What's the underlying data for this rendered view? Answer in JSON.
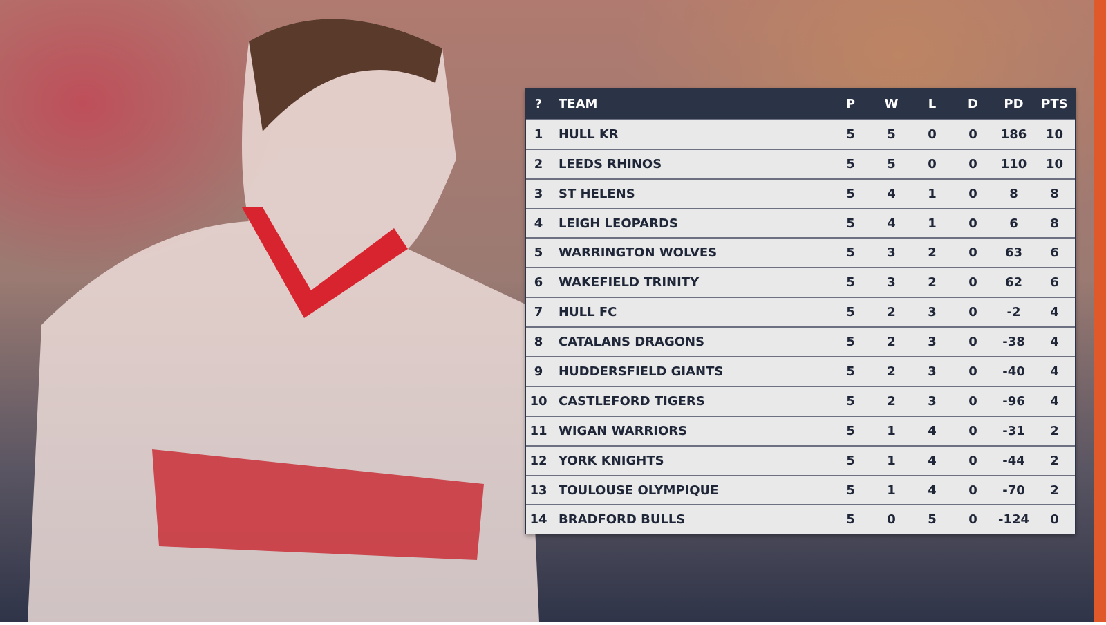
{
  "table": {
    "header": [
      "?",
      "TEAM",
      "P",
      "W",
      "L",
      "D",
      "PD",
      "PTS"
    ],
    "rows": [
      [
        1,
        "HULL KR",
        5,
        5,
        0,
        0,
        186,
        10
      ],
      [
        2,
        "LEEDS RHINOS",
        5,
        5,
        0,
        0,
        110,
        10
      ],
      [
        3,
        "ST HELENS",
        5,
        4,
        1,
        0,
        8,
        8
      ],
      [
        4,
        "LEIGH LEOPARDS",
        5,
        4,
        1,
        0,
        6,
        8
      ],
      [
        5,
        "WARRINGTON WOLVES",
        5,
        3,
        2,
        0,
        63,
        6
      ],
      [
        6,
        "WAKEFIELD TRINITY",
        5,
        3,
        2,
        0,
        62,
        6
      ],
      [
        7,
        "HULL FC",
        5,
        2,
        3,
        0,
        -2,
        4
      ],
      [
        8,
        "CATALANS DRAGONS",
        5,
        2,
        3,
        0,
        -38,
        4
      ],
      [
        9,
        "HUDDERSFIELD GIANTS",
        5,
        2,
        3,
        0,
        -40,
        4
      ],
      [
        10,
        "CASTLEFORD TIGERS",
        5,
        2,
        3,
        0,
        -96,
        4
      ],
      [
        11,
        "WIGAN WARRIORS",
        5,
        1,
        4,
        0,
        -31,
        2
      ],
      [
        12,
        "YORK KNIGHTS",
        5,
        1,
        4,
        0,
        -44,
        2
      ],
      [
        13,
        "TOULOUSE OLYMPIQUE",
        5,
        1,
        4,
        0,
        -70,
        2
      ],
      [
        14,
        "BRADFORD BULLS",
        5,
        0,
        5,
        0,
        -124,
        0
      ]
    ]
  }
}
